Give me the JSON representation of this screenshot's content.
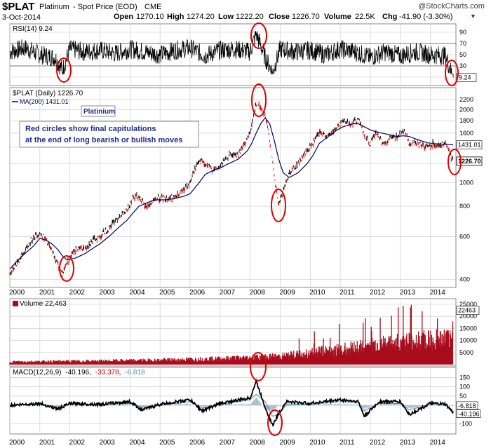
{
  "header": {
    "symbol": "$PLAT",
    "name": "Platinum",
    "subtitle": "- Spot Price (EOD)",
    "exchange": "CME",
    "date": "3-Oct-2014",
    "watermark": "@StockCharts.com",
    "quote": {
      "open_label": "Open",
      "open": "1270.10",
      "high_label": "High",
      "high": "1274.20",
      "low_label": "Low",
      "low": "1222.20",
      "close_label": "Close",
      "close": "1226.70",
      "volume_label": "Volume",
      "volume": "22.5K",
      "chg_label": "Chg",
      "chg": "-41.90 (-3.30%)"
    }
  },
  "colors": {
    "price_up": "#000000",
    "price_down": "#d40000",
    "ma": "#000060",
    "volume": "#a80c1c",
    "macd": "#000000",
    "signal": "#4a8fb4",
    "circle": "#e00000",
    "annotation_text": "#1e2e8c",
    "grid": "#c8c8c8"
  },
  "annotations": {
    "platinium_box": "Platinium",
    "note_line1": "Red circles show final capitulations",
    "note_line2": "at the end of long bearish or bullish moves"
  },
  "x_axis_years": [
    "2000",
    "2001",
    "2002",
    "2003",
    "2004",
    "2005",
    "2006",
    "2007",
    "2008",
    "2009",
    "2010",
    "2011",
    "2012",
    "2013",
    "2014"
  ],
  "chart_data": [
    {
      "type": "line",
      "name": "rsi",
      "legend": "RSI(14) 9.24",
      "last_value": "9.24",
      "ylim": [
        0,
        100
      ],
      "y_ticks": [
        90,
        70,
        50,
        30,
        10
      ],
      "reference_lines": [
        70,
        30
      ],
      "x": [
        2000.0,
        2000.5,
        2001.0,
        2001.5,
        2001.75,
        2002.0,
        2002.5,
        2003.0,
        2003.5,
        2004.0,
        2004.5,
        2005.0,
        2005.5,
        2006.0,
        2006.5,
        2007.0,
        2007.5,
        2008.0,
        2008.2,
        2008.5,
        2008.75,
        2009.0,
        2009.5,
        2010.0,
        2010.5,
        2011.0,
        2011.5,
        2012.0,
        2012.5,
        2013.0,
        2013.5,
        2014.0,
        2014.5,
        2014.76
      ],
      "values": [
        55,
        62,
        50,
        45,
        22,
        60,
        55,
        58,
        52,
        60,
        55,
        50,
        58,
        62,
        48,
        58,
        60,
        55,
        88,
        45,
        18,
        60,
        55,
        58,
        50,
        60,
        55,
        45,
        55,
        48,
        55,
        50,
        48,
        9.24
      ]
    },
    {
      "type": "line",
      "name": "price",
      "legend": "$PLAT (Daily) 1226.70",
      "ma_legend": "MA(200) 1431.01",
      "last_price": "1226.70",
      "last_ma": "1431.01",
      "log_scale": true,
      "ylim": [
        380,
        2400
      ],
      "y_ticks": [
        2200,
        2000,
        1800,
        1600,
        1400,
        1200,
        1000,
        800,
        600,
        400
      ],
      "x": [
        2000.0,
        2000.2,
        2000.5,
        2000.8,
        2001.0,
        2001.2,
        2001.4,
        2001.6,
        2001.75,
        2001.9,
        2002.2,
        2002.5,
        2002.8,
        2003.0,
        2003.3,
        2003.6,
        2003.9,
        2004.1,
        2004.3,
        2004.5,
        2004.7,
        2004.9,
        2005.2,
        2005.5,
        2005.8,
        2006.0,
        2006.3,
        2006.5,
        2006.8,
        2007.0,
        2007.3,
        2007.6,
        2007.9,
        2008.05,
        2008.2,
        2008.35,
        2008.5,
        2008.65,
        2008.8,
        2008.95,
        2009.1,
        2009.3,
        2009.6,
        2009.9,
        2010.1,
        2010.3,
        2010.6,
        2010.9,
        2011.1,
        2011.4,
        2011.6,
        2011.8,
        2012.0,
        2012.2,
        2012.4,
        2012.6,
        2012.9,
        2013.1,
        2013.3,
        2013.6,
        2013.9,
        2014.1,
        2014.3,
        2014.5,
        2014.76
      ],
      "values": [
        420,
        460,
        520,
        600,
        620,
        580,
        520,
        460,
        420,
        470,
        530,
        540,
        580,
        600,
        650,
        720,
        760,
        880,
        880,
        790,
        820,
        860,
        860,
        870,
        930,
        1000,
        1250,
        1180,
        1130,
        1160,
        1300,
        1300,
        1500,
        1700,
        2150,
        2050,
        1900,
        1500,
        1050,
        800,
        920,
        1100,
        1200,
        1350,
        1450,
        1600,
        1550,
        1700,
        1800,
        1750,
        1850,
        1550,
        1450,
        1600,
        1450,
        1500,
        1550,
        1650,
        1450,
        1450,
        1400,
        1450,
        1420,
        1450,
        1226.7
      ],
      "ma_values": [
        440,
        470,
        510,
        550,
        590,
        580,
        560,
        530,
        500,
        480,
        490,
        510,
        540,
        560,
        600,
        650,
        700,
        750,
        800,
        820,
        840,
        850,
        850,
        860,
        880,
        900,
        1000,
        1080,
        1130,
        1150,
        1200,
        1250,
        1350,
        1450,
        1600,
        1750,
        1850,
        1750,
        1500,
        1250,
        1100,
        1050,
        1100,
        1200,
        1300,
        1450,
        1550,
        1650,
        1700,
        1750,
        1750,
        1700,
        1650,
        1620,
        1600,
        1580,
        1550,
        1560,
        1550,
        1500,
        1460,
        1450,
        1445,
        1440,
        1431.01
      ]
    },
    {
      "type": "bar",
      "name": "volume",
      "legend": "Volume 22,463",
      "last_value": "22463",
      "ylim": [
        0,
        25000
      ],
      "y_ticks": [
        25000,
        20000,
        15000,
        10000,
        5000
      ],
      "x": [
        2000,
        2001,
        2002,
        2003,
        2004,
        2005,
        2006,
        2007,
        2008,
        2009,
        2010,
        2011,
        2012,
        2013,
        2014
      ],
      "values": [
        1200,
        1300,
        1400,
        1500,
        1700,
        1900,
        2200,
        2500,
        3000,
        3500,
        5000,
        6500,
        8000,
        9500,
        10500
      ]
    },
    {
      "type": "line",
      "name": "macd",
      "legend": "MACD(12,26,9) -40.196, -33.378, -6.818",
      "legend_label": "MACD(12,26,9)",
      "legend_macd": "-40.196",
      "legend_signal": "-33.378",
      "legend_hist": "-6.818",
      "ylim": [
        -140,
        190
      ],
      "y_ticks": [
        150,
        100,
        50,
        0,
        -100
      ],
      "x": [
        2000.0,
        2001.0,
        2001.6,
        2002.0,
        2003.0,
        2004.0,
        2004.4,
        2005.0,
        2006.0,
        2006.4,
        2007.0,
        2008.0,
        2008.2,
        2008.5,
        2008.75,
        2008.9,
        2009.2,
        2010.0,
        2011.0,
        2011.6,
        2011.8,
        2012.3,
        2013.0,
        2013.3,
        2014.0,
        2014.5,
        2014.76
      ],
      "values": [
        0,
        10,
        -20,
        10,
        5,
        20,
        -25,
        5,
        30,
        -30,
        10,
        40,
        130,
        -10,
        -110,
        -60,
        20,
        10,
        30,
        20,
        -60,
        20,
        20,
        -50,
        10,
        5,
        -40.196
      ],
      "signal_values": [
        0,
        8,
        -10,
        5,
        5,
        10,
        -10,
        0,
        20,
        -15,
        5,
        30,
        60,
        20,
        -60,
        -50,
        0,
        5,
        20,
        15,
        -30,
        10,
        10,
        -25,
        5,
        0,
        -33.378
      ]
    }
  ]
}
